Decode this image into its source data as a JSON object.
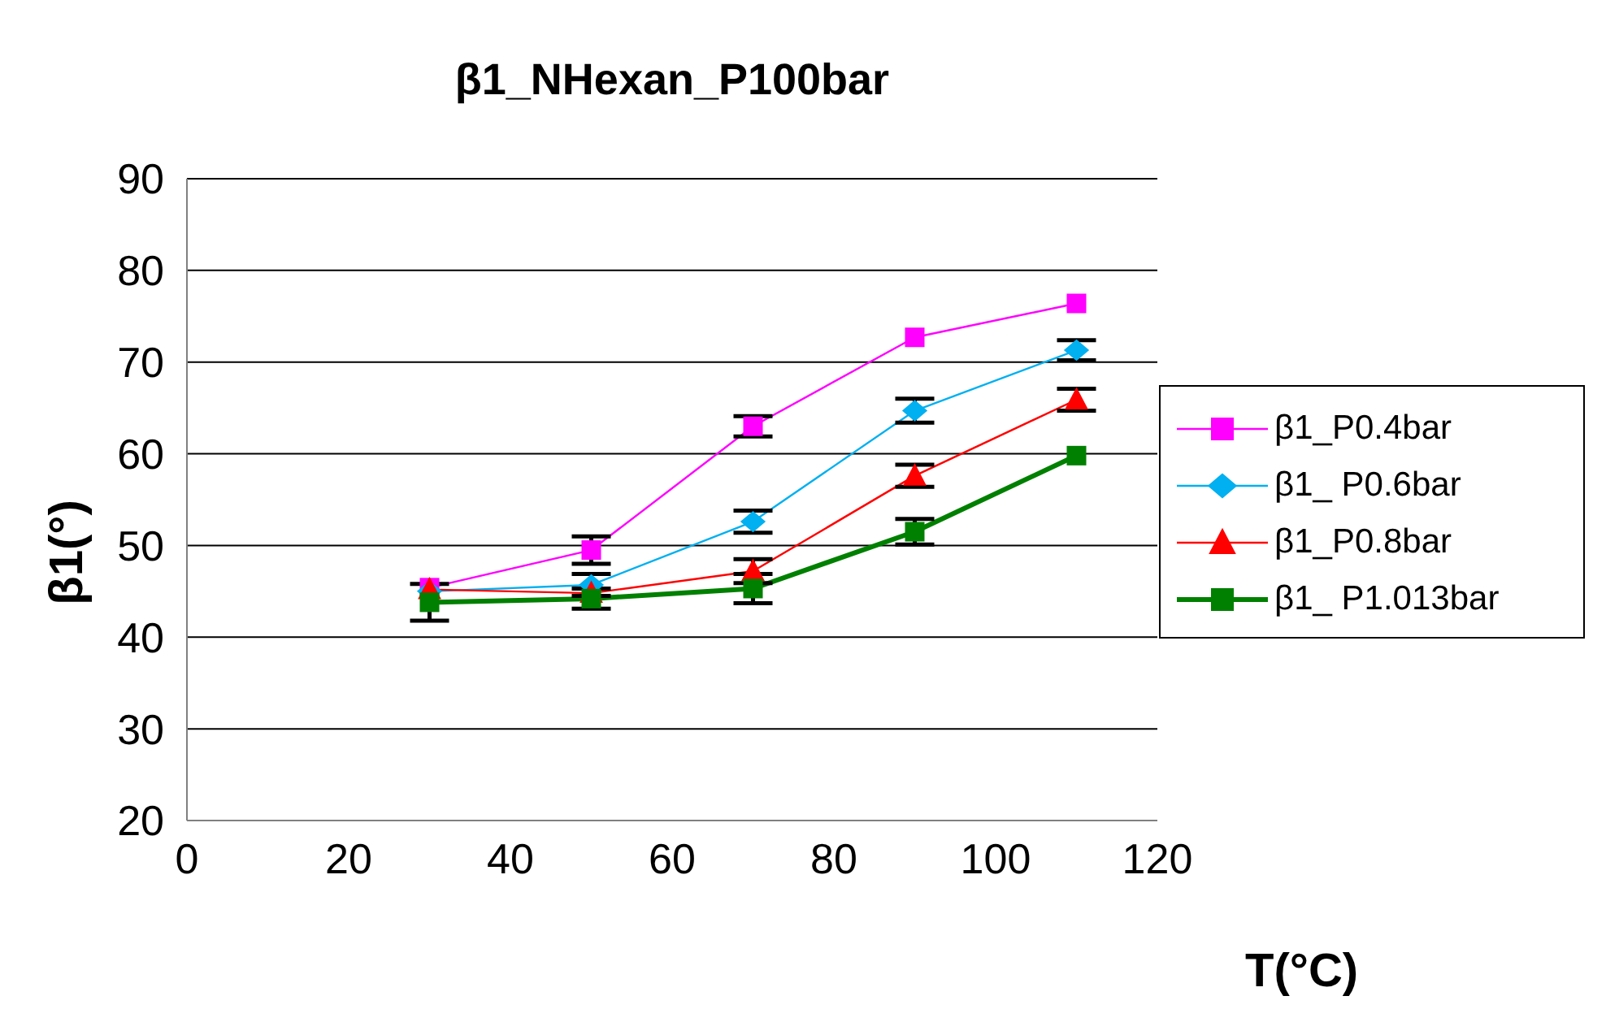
{
  "chart_data": {
    "type": "line",
    "title": "β1_NHexan_P100bar",
    "xlabel": "T(°C)",
    "ylabel": "β1(°)",
    "x": [
      30,
      50,
      70,
      90,
      110
    ],
    "series": [
      {
        "name": "β1_P0.4bar",
        "color": "#ff00ff",
        "marker": "square",
        "values": [
          45.4,
          49.5,
          63.0,
          72.7,
          76.4
        ],
        "errors": [
          null,
          1.5,
          1.1,
          null,
          null
        ]
      },
      {
        "name": "β1_ P0.6bar",
        "color": "#00b0f0",
        "marker": "diamond",
        "values": [
          45.0,
          45.7,
          52.6,
          64.7,
          71.3
        ],
        "errors": [
          null,
          1.2,
          1.2,
          1.3,
          1.1
        ]
      },
      {
        "name": "β1_P0.8bar",
        "color": "#ff0000",
        "marker": "triangle",
        "values": [
          45.2,
          44.8,
          47.2,
          57.6,
          65.9
        ],
        "errors": [
          null,
          null,
          1.3,
          1.2,
          1.2
        ]
      },
      {
        "name": "β1_ P1.013bar",
        "color": "#008000",
        "marker": "square",
        "values": [
          43.8,
          44.2,
          45.3,
          51.5,
          59.8
        ],
        "errors": [
          2,
          1.1,
          1.6,
          1.4,
          null
        ]
      }
    ],
    "xlim": [
      0,
      120
    ],
    "xticks": [
      0,
      20,
      40,
      60,
      80,
      100,
      120
    ],
    "ylim": [
      20,
      90
    ],
    "yticks": [
      20,
      30,
      40,
      50,
      60,
      70,
      80,
      90
    ],
    "grid": "y",
    "legend": "right"
  }
}
